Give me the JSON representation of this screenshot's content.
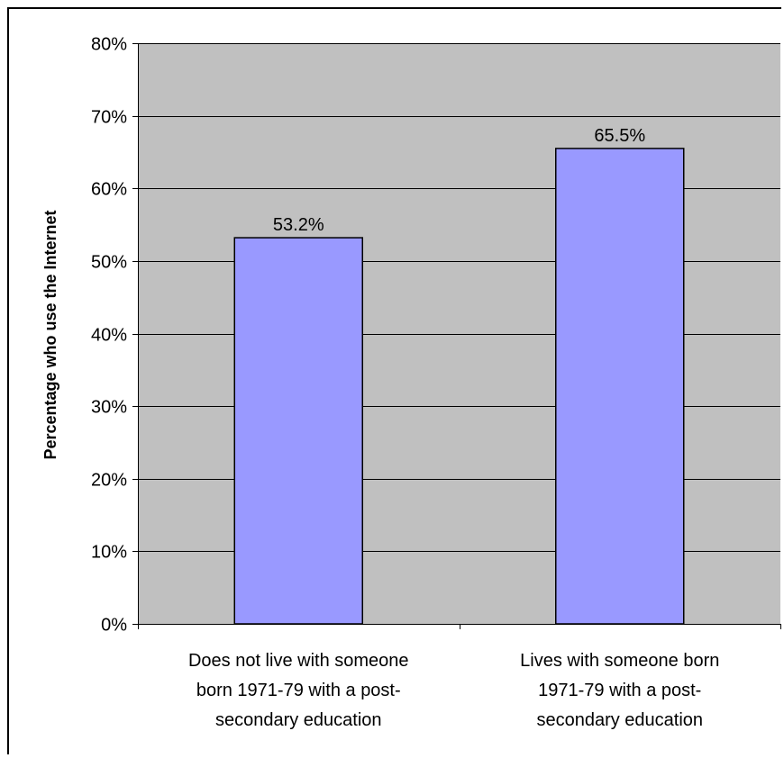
{
  "chart_data": {
    "type": "bar",
    "categories": [
      [
        "Does not live with someone",
        "born 1971-79 with a post-",
        "secondary education"
      ],
      [
        "Lives with someone born",
        "1971-79 with a post-",
        "secondary education"
      ]
    ],
    "values": [
      53.2,
      65.5
    ],
    "data_labels": [
      "53.2%",
      "65.5%"
    ],
    "ylabel": "Percentage who use the Internet",
    "xlabel": "",
    "ylim": [
      0,
      80
    ],
    "y_ticks": [
      "0%",
      "10%",
      "20%",
      "30%",
      "40%",
      "50%",
      "60%",
      "70%",
      "80%"
    ],
    "grid": true,
    "legend": "none",
    "colors": {
      "plot_background": "#c0c0c0",
      "bar_fill": "#9999ff",
      "bar_stroke": "#000000",
      "gridline": "#000000"
    }
  }
}
